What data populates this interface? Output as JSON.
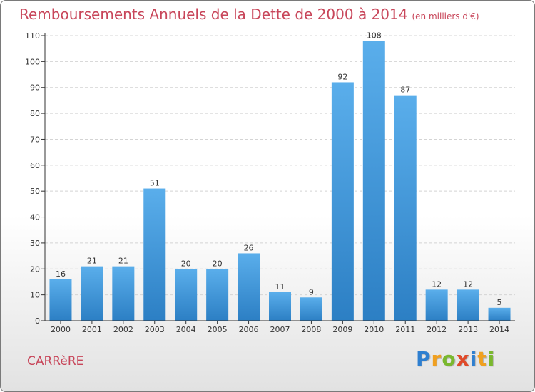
{
  "title": "Remboursements Annuels de la Dette de 2000 à 2014",
  "subtitle": "(en milliers d'€)",
  "commune": "CARRèRE",
  "brand": {
    "letters": [
      {
        "char": "P",
        "color": "#2e7fd0"
      },
      {
        "char": "r",
        "color": "#f0a020"
      },
      {
        "char": "o",
        "color": "#7ab82e"
      },
      {
        "char": "x",
        "color": "#e04a2a"
      },
      {
        "char": "i",
        "color": "#2e7fd0"
      },
      {
        "char": "t",
        "color": "#f0a020"
      },
      {
        "char": "i",
        "color": "#7ab82e"
      }
    ]
  },
  "colors": {
    "bar_light": "#5aaeeb",
    "bar_dark": "#2c7fc4",
    "axis": "#333333",
    "grid": "#d4d4d4"
  },
  "chart_data": {
    "type": "bar",
    "categories": [
      "2000",
      "2001",
      "2002",
      "2003",
      "2004",
      "2005",
      "2006",
      "2007",
      "2008",
      "2009",
      "2010",
      "2011",
      "2012",
      "2013",
      "2014"
    ],
    "values": [
      16,
      21,
      21,
      51,
      20,
      20,
      26,
      11,
      9,
      92,
      108,
      87,
      12,
      12,
      5
    ],
    "ylim": [
      0,
      110
    ],
    "yticks": [
      0,
      10,
      20,
      30,
      40,
      50,
      60,
      70,
      80,
      90,
      100,
      110
    ],
    "grid": true,
    "data_labels": true
  }
}
